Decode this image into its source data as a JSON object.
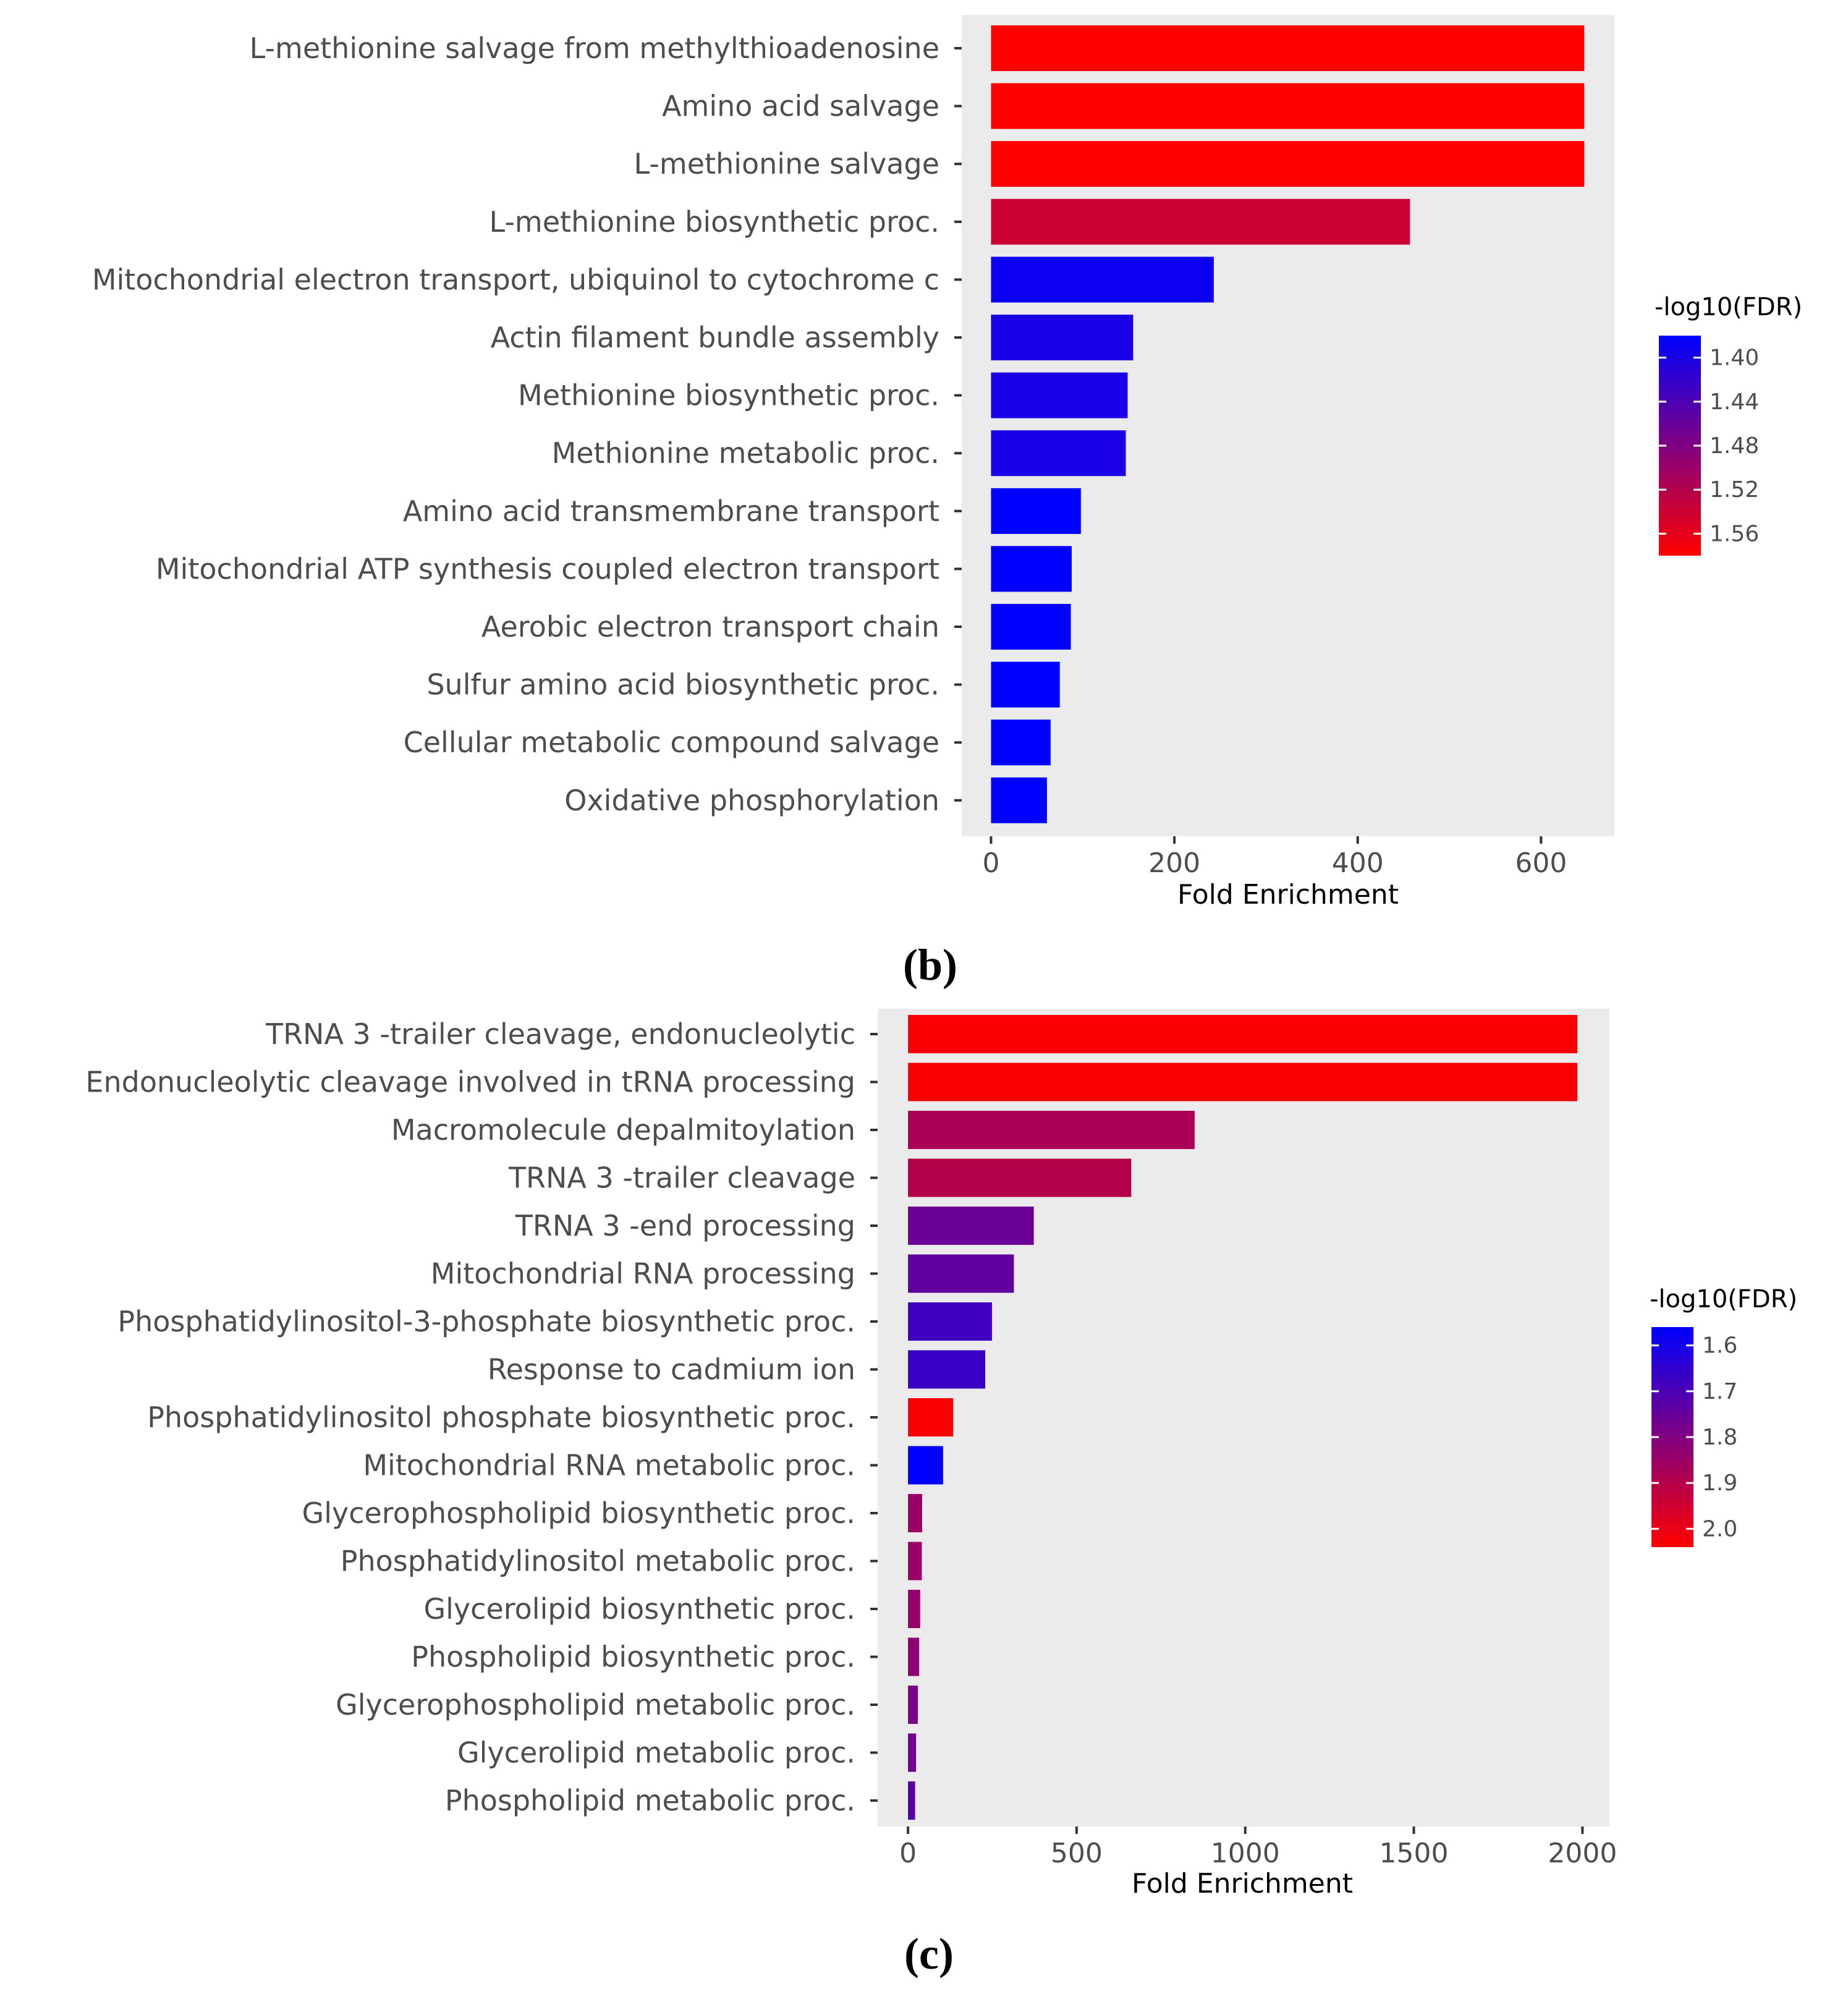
{
  "panel_labels": [
    "(b)",
    "(c)"
  ],
  "chart_data": [
    {
      "type": "bar",
      "orientation": "horizontal",
      "panel_label": "(b)",
      "xlabel": "Fold Enrichment",
      "ylabel": "",
      "xlim": [
        -32,
        680
      ],
      "xticks": [
        0,
        200,
        400,
        600
      ],
      "xtick_labels": [
        "0",
        "200",
        "400",
        "600"
      ],
      "grid": false,
      "categories": [
        "L-methionine salvage from methylthioadenosine",
        "Amino acid salvage",
        "L-methionine salvage",
        "L-methionine biosynthetic proc.",
        "Mitochondrial electron transport, ubiquinol to cytochrome c",
        "Actin filament bundle assembly",
        "Methionine biosynthetic proc.",
        "Methionine metabolic proc.",
        "Amino acid transmembrane transport",
        "Mitochondrial ATP synthesis coupled electron transport",
        "Aerobic electron transport chain",
        "Sulfur amino acid biosynthetic proc.",
        "Cellular metabolic compound salvage",
        "Oxidative phosphorylation"
      ],
      "values": [
        647,
        647,
        647,
        457,
        243,
        155,
        149,
        147,
        98,
        88,
        87,
        75,
        65,
        61
      ],
      "color_values": [
        1.58,
        1.58,
        1.58,
        1.54,
        1.39,
        1.4,
        1.4,
        1.4,
        1.37,
        1.37,
        1.37,
        1.37,
        1.37,
        1.37
      ],
      "legend": {
        "title": "-log10(FDR)",
        "position": "right",
        "range": [
          1.38,
          1.58
        ],
        "ticks": [
          1.4,
          1.44,
          1.48,
          1.52,
          1.56
        ],
        "tick_labels": [
          "1.40",
          "1.44",
          "1.48",
          "1.52",
          "1.56"
        ],
        "low_color": "#0000ff",
        "high_color": "#ff0000"
      }
    },
    {
      "type": "bar",
      "orientation": "horizontal",
      "panel_label": "(c)",
      "xlabel": "Fold Enrichment",
      "ylabel": "",
      "xlim": [
        -90,
        2080
      ],
      "xticks": [
        0,
        500,
        1000,
        1500,
        2000
      ],
      "xtick_labels": [
        "0",
        "500",
        "1000",
        "1500",
        "2000"
      ],
      "grid": false,
      "categories": [
        "TRNA 3 -trailer cleavage, endonucleolytic",
        "Endonucleolytic cleavage involved in tRNA processing",
        "Macromolecule depalmitoylation",
        "TRNA 3 -trailer cleavage",
        "TRNA 3 -end processing",
        "Mitochondrial RNA processing",
        "Phosphatidylinositol-3-phosphate biosynthetic proc.",
        "Response to cadmium ion",
        "Phosphatidylinositol phosphate biosynthetic proc.",
        "Mitochondrial RNA metabolic proc.",
        "Glycerophospholipid biosynthetic proc.",
        "Phosphatidylinositol metabolic proc.",
        "Glycerolipid biosynthetic proc.",
        "Phospholipid biosynthetic proc.",
        "Glycerophospholipid metabolic proc.",
        "Glycerolipid metabolic proc.",
        "Phospholipid metabolic proc."
      ],
      "values": [
        1985,
        1985,
        850,
        662,
        373,
        314,
        249,
        229,
        134,
        104,
        42,
        41,
        36,
        33,
        29,
        24,
        21
      ],
      "color_values": [
        2.03,
        2.03,
        1.88,
        1.9,
        1.76,
        1.74,
        1.68,
        1.67,
        2.03,
        1.56,
        1.85,
        1.85,
        1.84,
        1.83,
        1.79,
        1.77,
        1.72
      ],
      "legend": {
        "title": "-log10(FDR)",
        "position": "right",
        "range": [
          1.56,
          2.04
        ],
        "ticks": [
          1.6,
          1.7,
          1.8,
          1.9,
          2.0
        ],
        "tick_labels": [
          "1.6",
          "1.7",
          "1.8",
          "1.9",
          "2.0"
        ],
        "low_color": "#0000ff",
        "high_color": "#ff0000"
      }
    }
  ]
}
